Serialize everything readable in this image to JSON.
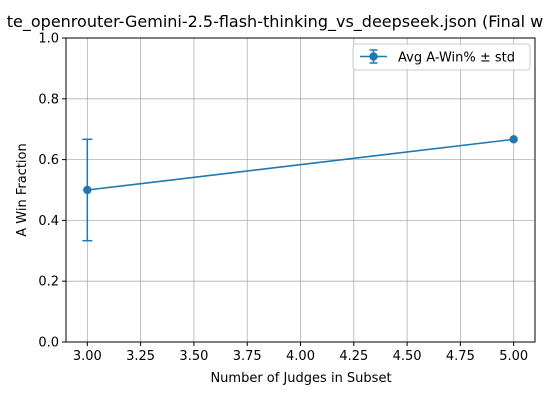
{
  "chart_data": {
    "type": "line",
    "title": "te_openrouter-Gemini-2.5-flash-thinking_vs_deepseek.json (Final w",
    "xlabel": "Number of Judges in Subset",
    "ylabel": "A Win Fraction",
    "xlim": [
      2.9,
      5.1
    ],
    "ylim": [
      0.0,
      1.0
    ],
    "xticks": [
      "3.00",
      "3.25",
      "3.50",
      "3.75",
      "4.00",
      "4.25",
      "4.50",
      "4.75",
      "5.00"
    ],
    "yticks": [
      "0.0",
      "0.2",
      "0.4",
      "0.6",
      "0.8",
      "1.0"
    ],
    "grid": true,
    "legend_position": "top-right",
    "series": [
      {
        "name": "Avg A-Win% ± std",
        "color": "#1f77b4",
        "x": [
          3,
          5
        ],
        "y": [
          0.5,
          0.6667
        ],
        "yerr": [
          0.1667,
          0.0
        ]
      }
    ]
  }
}
